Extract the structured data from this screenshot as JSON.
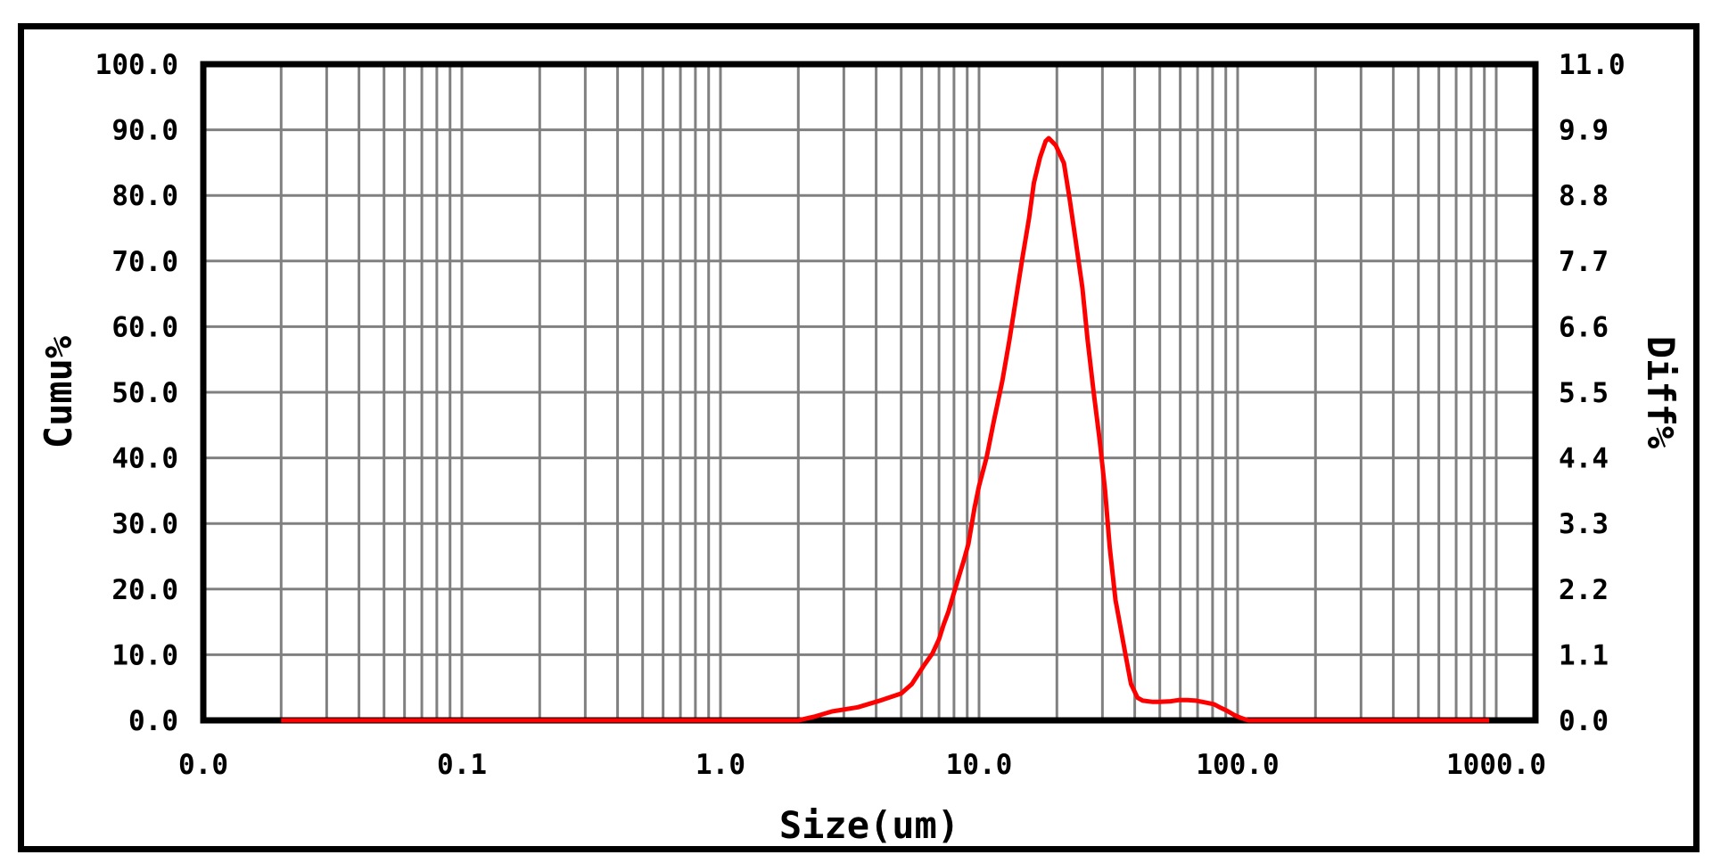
{
  "chart_data": {
    "type": "line",
    "title": "",
    "grid": true,
    "legend_position": "none",
    "colors": {
      "background": "#FFFFFF",
      "grid": "#808080",
      "axis": "#000000",
      "curve": "#FF0000",
      "text": "#000000"
    },
    "x_axis": {
      "label": "Size(um)",
      "scale": "log",
      "min": 0.01,
      "max": 1450,
      "tick_values": [
        0.01,
        0.1,
        1,
        10,
        100,
        1000
      ],
      "tick_labels": [
        "0.0",
        "0.1",
        "1.0",
        "10.0",
        "100.0",
        "1000.0"
      ]
    },
    "left_axis": {
      "label": "Cumu%",
      "min": 0,
      "max": 100,
      "tick_labels": [
        "100.0",
        "90.0",
        "80.0",
        "70.0",
        "60.0",
        "50.0",
        "40.0",
        "30.0",
        "20.0",
        "10.0",
        "0.0"
      ]
    },
    "right_axis": {
      "label": "Diff%",
      "min": 0,
      "max": 11,
      "tick_labels": [
        "11.0",
        "9.9",
        "8.8",
        "7.7",
        "6.6",
        "5.5",
        "4.4",
        "3.3",
        "2.2",
        "1.1",
        "0.0"
      ]
    },
    "series": [
      {
        "name": "Diff%",
        "axis": "right",
        "color": "#FF0000",
        "peak_size_um": 18.6,
        "peak_diff_percent": 9.76,
        "points": [
          [
            0.02,
            0
          ],
          [
            0.03,
            0
          ],
          [
            0.05,
            0
          ],
          [
            0.08,
            0
          ],
          [
            0.13,
            0
          ],
          [
            0.2,
            0
          ],
          [
            0.3,
            0
          ],
          [
            0.5,
            0
          ],
          [
            0.8,
            0
          ],
          [
            1.3,
            0
          ],
          [
            2.0,
            0
          ],
          [
            2.3,
            0.06
          ],
          [
            2.7,
            0.15
          ],
          [
            3.4,
            0.22
          ],
          [
            4.2,
            0.34
          ],
          [
            5.0,
            0.45
          ],
          [
            5.5,
            0.61
          ],
          [
            6.1,
            0.91
          ],
          [
            6.6,
            1.12
          ],
          [
            7.0,
            1.36
          ],
          [
            7.3,
            1.61
          ],
          [
            7.6,
            1.81
          ],
          [
            7.9,
            2.06
          ],
          [
            8.4,
            2.44
          ],
          [
            8.7,
            2.66
          ],
          [
            9.1,
            2.96
          ],
          [
            9.6,
            3.56
          ],
          [
            10.0,
            3.93
          ],
          [
            10.7,
            4.41
          ],
          [
            11.4,
            5.01
          ],
          [
            12.3,
            5.69
          ],
          [
            13.1,
            6.37
          ],
          [
            13.8,
            6.99
          ],
          [
            14.7,
            7.74
          ],
          [
            15.6,
            8.41
          ],
          [
            16.3,
            9.01
          ],
          [
            17.2,
            9.43
          ],
          [
            18.1,
            9.71
          ],
          [
            18.6,
            9.76
          ],
          [
            19.8,
            9.64
          ],
          [
            21.3,
            9.34
          ],
          [
            22.4,
            8.74
          ],
          [
            23.6,
            8.07
          ],
          [
            25.1,
            7.25
          ],
          [
            26.3,
            6.37
          ],
          [
            27.7,
            5.53
          ],
          [
            29.3,
            4.68
          ],
          [
            30.7,
            3.86
          ],
          [
            32.0,
            2.91
          ],
          [
            33.7,
            2.02
          ],
          [
            36.6,
            1.17
          ],
          [
            38.7,
            0.61
          ],
          [
            41.0,
            0.38
          ],
          [
            43.0,
            0.33
          ],
          [
            47.0,
            0.31
          ],
          [
            50.0,
            0.31
          ],
          [
            55.0,
            0.32
          ],
          [
            59.0,
            0.34
          ],
          [
            64.0,
            0.34
          ],
          [
            69.0,
            0.33
          ],
          [
            75.0,
            0.3
          ],
          [
            81.0,
            0.27
          ],
          [
            86.0,
            0.21
          ],
          [
            91.0,
            0.16
          ],
          [
            97.0,
            0.09
          ],
          [
            103.0,
            0.04
          ],
          [
            110.0,
            0
          ],
          [
            150.0,
            0
          ],
          [
            250.0,
            0
          ],
          [
            400.0,
            0
          ],
          [
            650.0,
            0
          ],
          [
            940.0,
            0
          ]
        ]
      }
    ]
  }
}
